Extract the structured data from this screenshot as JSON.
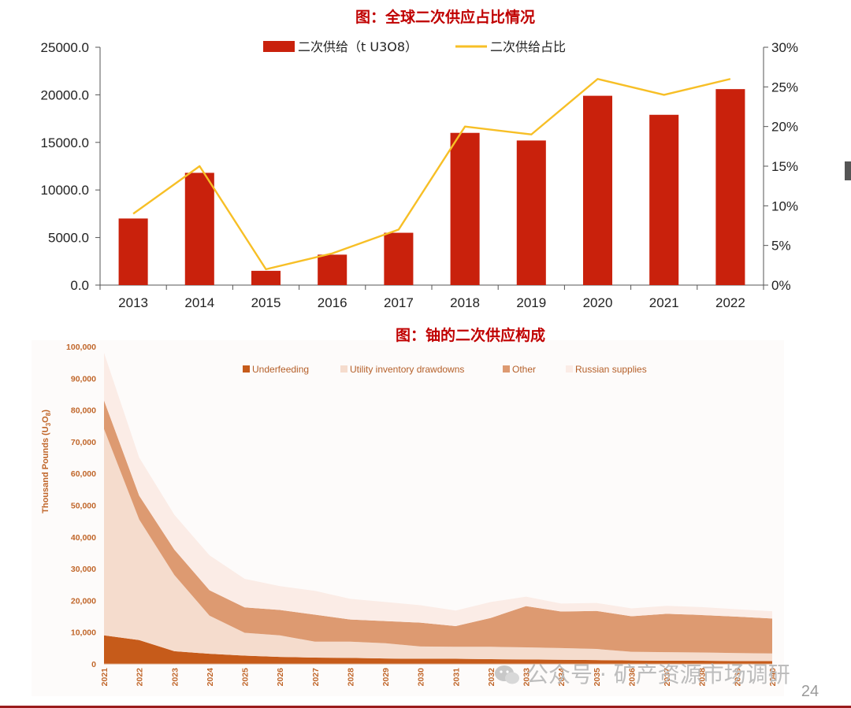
{
  "page_number": "24",
  "watermark": "公众号 · 矿产资源市场调研",
  "colors": {
    "bar": "#c9210c",
    "line": "#f7bf26",
    "underfeeding": "#c65b1a",
    "utility": "#f5dccd",
    "other": "#dd9a71",
    "russian": "#fbece6",
    "title": "#c00000",
    "footer_rule": "#9b1c1c"
  },
  "chart_data": [
    {
      "type": "bar",
      "title": "图：全球二次供应占比情况",
      "categories": [
        "2013",
        "2014",
        "2015",
        "2016",
        "2017",
        "2018",
        "2019",
        "2020",
        "2021",
        "2022"
      ],
      "series": [
        {
          "name": "二次供给（t U3O8）",
          "type": "bar",
          "axis": "left",
          "values": [
            7000,
            11800,
            1500,
            3200,
            5500,
            16000,
            15200,
            19900,
            17900,
            20600
          ]
        },
        {
          "name": "二次供给占比",
          "type": "line",
          "axis": "right",
          "values": [
            9,
            15,
            2,
            4,
            7,
            20,
            19,
            26,
            24,
            26
          ]
        }
      ],
      "ylim": [
        0,
        25000
      ],
      "y_ticks": [
        "0.0",
        "5000.0",
        "10000.0",
        "15000.0",
        "20000.0",
        "25000.0"
      ],
      "y2lim": [
        0,
        30
      ],
      "y2_ticks": [
        "0%",
        "5%",
        "10%",
        "15%",
        "20%",
        "25%",
        "30%"
      ],
      "legend": "top-center",
      "grid": false
    },
    {
      "type": "area",
      "title": "图：铀的二次供应构成",
      "ylabel": "Thousand Pounds (U3O8)",
      "x": [
        "2021",
        "2022",
        "2023",
        "2024",
        "2025",
        "2026",
        "2027",
        "2028",
        "2029",
        "2030",
        "2031",
        "2032",
        "2033",
        "2034",
        "2035",
        "2036",
        "2037",
        "2038",
        "2039",
        "2040"
      ],
      "series": [
        {
          "name": "Underfeeding",
          "values": [
            9000,
            7500,
            4000,
            3200,
            2600,
            2200,
            2000,
            1900,
            1700,
            1600,
            1600,
            1500,
            1400,
            1300,
            1200,
            1100,
            1000,
            1000,
            900,
            900
          ]
        },
        {
          "name": "Utility inventory drawdowns",
          "values": [
            65000,
            38000,
            24000,
            12000,
            7200,
            6800,
            5000,
            5100,
            4800,
            3900,
            3800,
            3900,
            3800,
            3700,
            3500,
            2700,
            2700,
            2600,
            2500,
            2400
          ]
        },
        {
          "name": "Other",
          "values": [
            9000,
            7500,
            8000,
            8000,
            8000,
            8000,
            8500,
            7000,
            7000,
            7500,
            6500,
            9100,
            13000,
            11500,
            12000,
            11200,
            12100,
            11800,
            11500,
            11000
          ]
        },
        {
          "name": "Russian supplies",
          "values": [
            15000,
            12000,
            11000,
            11000,
            9000,
            7500,
            7500,
            6500,
            6000,
            5500,
            4900,
            5000,
            3000,
            2500,
            2500,
            2500,
            2500,
            2500,
            2300,
            2300
          ]
        }
      ],
      "ylim": [
        0,
        100000
      ],
      "y_ticks": [
        "0",
        "10,000",
        "20,000",
        "30,000",
        "40,000",
        "50,000",
        "60,000",
        "70,000",
        "80,000",
        "90,000",
        "100,000"
      ],
      "stacked": true,
      "legend": "top",
      "grid": false
    }
  ]
}
